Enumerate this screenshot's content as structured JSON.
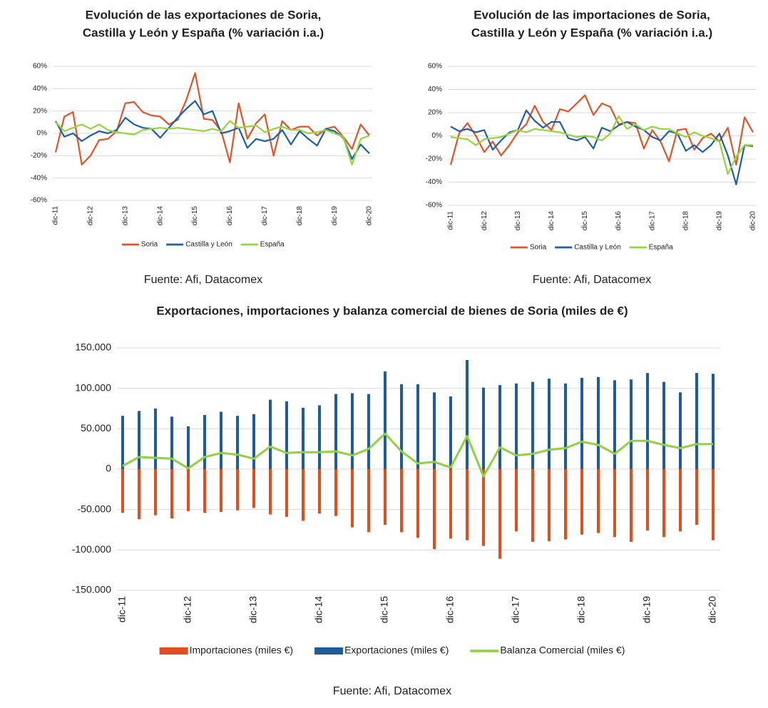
{
  "chart_data": [
    {
      "type": "line",
      "title": [
        "Evolución de las exportaciones de Soria,",
        "Castilla y León y España (% variación i.a.)"
      ],
      "source": "Fuente: Afi, Datacomex",
      "categories": [
        "dic-11",
        null,
        null,
        null,
        "dic-12",
        null,
        null,
        null,
        "dic-13",
        null,
        null,
        null,
        "dic-14",
        null,
        null,
        null,
        "dic-15",
        null,
        null,
        null,
        "dic-16",
        null,
        null,
        null,
        "dic-17",
        null,
        null,
        null,
        "dic-18",
        null,
        null,
        null,
        "dic-19",
        null,
        null,
        null,
        "dic-20"
      ],
      "ylim": [
        -60,
        60
      ],
      "yticks": [
        {
          "value": -60,
          "label": "-60%"
        },
        {
          "value": -40,
          "label": "-40%"
        },
        {
          "value": -20,
          "label": "-20%"
        },
        {
          "value": 0,
          "label": "0%"
        },
        {
          "value": 20,
          "label": "20%"
        },
        {
          "value": 40,
          "label": "40%"
        },
        {
          "value": 60,
          "label": "60%"
        }
      ],
      "grid": true,
      "legend": "bottom",
      "series": [
        {
          "name": "Soria",
          "color": "#e0542a",
          "values": [
            -17,
            15,
            19,
            -28,
            -20,
            -6,
            -5,
            2,
            27,
            28,
            19,
            16,
            15,
            8,
            12,
            30,
            54,
            13,
            12,
            2,
            -26,
            27,
            -5,
            9,
            17,
            -20,
            11,
            3,
            6,
            6,
            -2,
            4,
            6,
            -3,
            -14,
            8,
            -2
          ]
        },
        {
          "name": "Castilla y León",
          "color": "#1f5fa5",
          "values": [
            11,
            -3,
            0,
            -7,
            -2,
            2,
            0,
            3,
            14,
            8,
            5,
            4,
            -4,
            5,
            14,
            22,
            29,
            17,
            20,
            0,
            2,
            5,
            -13,
            -5,
            -7,
            -5,
            3,
            -10,
            2,
            -5,
            -11,
            4,
            2,
            -4,
            -23,
            -10,
            -18
          ]
        },
        {
          "name": "España",
          "color": "#92d63a",
          "values": [
            10,
            2,
            5,
            8,
            4,
            8,
            3,
            1,
            0,
            -1,
            3,
            4,
            5,
            4,
            5,
            4,
            3,
            2,
            4,
            2,
            11,
            5,
            6,
            7,
            1,
            4,
            6,
            3,
            3,
            0,
            1,
            3,
            0,
            -3,
            -28,
            -5,
            -2
          ]
        }
      ]
    },
    {
      "type": "line",
      "title": [
        "Evolución de las importaciones de Soria,",
        "Castilla y León y España (% variación i.a.)"
      ],
      "source": "Fuente: Afi, Datacomex",
      "categories": [
        "dic-11",
        null,
        null,
        null,
        "dic-12",
        null,
        null,
        null,
        "dic-13",
        null,
        null,
        null,
        "dic-14",
        null,
        null,
        null,
        "dic-15",
        null,
        null,
        null,
        "dic-16",
        null,
        null,
        null,
        "dic-17",
        null,
        null,
        null,
        "dic-18",
        null,
        null,
        null,
        "dic-19",
        null,
        null,
        null,
        "dic-20"
      ],
      "ylim": [
        -60,
        60
      ],
      "yticks": [
        {
          "value": -60,
          "label": "-60%"
        },
        {
          "value": -40,
          "label": "-40%"
        },
        {
          "value": -20,
          "label": "-20%"
        },
        {
          "value": 0,
          "label": "0%"
        },
        {
          "value": 20,
          "label": "20%"
        },
        {
          "value": 40,
          "label": "40%"
        },
        {
          "value": 60,
          "label": "60%"
        }
      ],
      "grid": true,
      "legend": "bottom",
      "series": [
        {
          "name": "Soria",
          "color": "#e0542a",
          "values": [
            -25,
            2,
            11,
            0,
            -14,
            -5,
            -17,
            -8,
            3,
            10,
            26,
            12,
            5,
            23,
            21,
            28,
            35,
            18,
            28,
            25,
            10,
            12,
            11,
            -11,
            5,
            -5,
            -22,
            5,
            6,
            -12,
            -2,
            2,
            -5,
            7,
            -25,
            16,
            3
          ]
        },
        {
          "name": "Castilla y León",
          "color": "#1f5fa5",
          "values": [
            8,
            4,
            6,
            3,
            5,
            -12,
            -4,
            3,
            5,
            22,
            13,
            7,
            12,
            12,
            -2,
            -4,
            -1,
            -11,
            7,
            4,
            9,
            12,
            8,
            5,
            -1,
            -4,
            4,
            2,
            -13,
            -8,
            -14,
            -8,
            2,
            -17,
            -42,
            -8,
            -9
          ]
        },
        {
          "name": "España",
          "color": "#92d63a",
          "values": [
            -1,
            -2,
            -3,
            -8,
            -3,
            -2,
            -1,
            2,
            5,
            3,
            6,
            5,
            4,
            3,
            1,
            -1,
            0,
            -1,
            -4,
            2,
            17,
            6,
            10,
            5,
            8,
            6,
            6,
            2,
            -1,
            3,
            0,
            -2,
            -5,
            -33,
            -18,
            -8,
            -8
          ]
        }
      ]
    },
    {
      "type": "bar",
      "title": [
        "Exportaciones, importaciones y balanza comercial de bienes de Soria (miles de €)"
      ],
      "source": "Fuente: Afi, Datacomex",
      "categories": [
        "dic-11",
        null,
        null,
        null,
        "dic-12",
        null,
        null,
        null,
        "dic-13",
        null,
        null,
        null,
        "dic-14",
        null,
        null,
        null,
        "dic-15",
        null,
        null,
        null,
        "dic-16",
        null,
        null,
        null,
        "dic-17",
        null,
        null,
        null,
        "dic-18",
        null,
        null,
        null,
        "dic-19",
        null,
        null,
        null,
        "dic-20"
      ],
      "ylim": [
        -150000,
        150000
      ],
      "yticks": [
        {
          "value": -150000,
          "label": "-150.000"
        },
        {
          "value": -100000,
          "label": "-100.000"
        },
        {
          "value": -50000,
          "label": "-50.000"
        },
        0,
        {
          "value": 50000,
          "label": "50.000"
        },
        {
          "value": 100000,
          "label": "100.000"
        },
        {
          "value": 150000,
          "label": "150.000"
        }
      ],
      "grid": true,
      "legend": "bottom",
      "series": [
        {
          "name": "Importaciones (miles €)",
          "type": "bar",
          "color": "#e0501e",
          "values": [
            -54000,
            -62000,
            -57000,
            -61000,
            -52000,
            -54000,
            -53000,
            -51000,
            -48000,
            -56000,
            -59000,
            -64000,
            -55000,
            -58000,
            -72000,
            -78000,
            -69000,
            -78000,
            -85000,
            -99000,
            -86000,
            -88000,
            -95000,
            -111000,
            -77000,
            -90000,
            -89000,
            -87000,
            -81000,
            -79000,
            -84000,
            -90000,
            -76000,
            -84000,
            -77000,
            -69000,
            -88000
          ]
        },
        {
          "name": "Exportaciones (miles €)",
          "type": "bar",
          "color": "#1f5c99",
          "values": [
            66000,
            72000,
            75000,
            65000,
            53000,
            67000,
            71000,
            66000,
            68000,
            86000,
            84000,
            76000,
            79000,
            93000,
            94000,
            93000,
            121000,
            105000,
            105000,
            95000,
            90000,
            135000,
            101000,
            104000,
            106000,
            108000,
            112000,
            106000,
            113000,
            114000,
            110000,
            111000,
            119000,
            108000,
            95000,
            119000,
            118000
          ]
        },
        {
          "name": "Balanza Comercial (miles €)",
          "type": "line",
          "color": "#8fd13f",
          "values": [
            4000,
            15000,
            14000,
            13000,
            1000,
            15000,
            20000,
            18000,
            13000,
            28000,
            20000,
            21000,
            21000,
            22000,
            17000,
            25000,
            44000,
            22000,
            7000,
            9000,
            2000,
            41000,
            -9000,
            27000,
            17000,
            19000,
            24000,
            26000,
            34000,
            30000,
            19000,
            35000,
            35000,
            30000,
            26000,
            31000,
            31000
          ]
        }
      ]
    }
  ]
}
